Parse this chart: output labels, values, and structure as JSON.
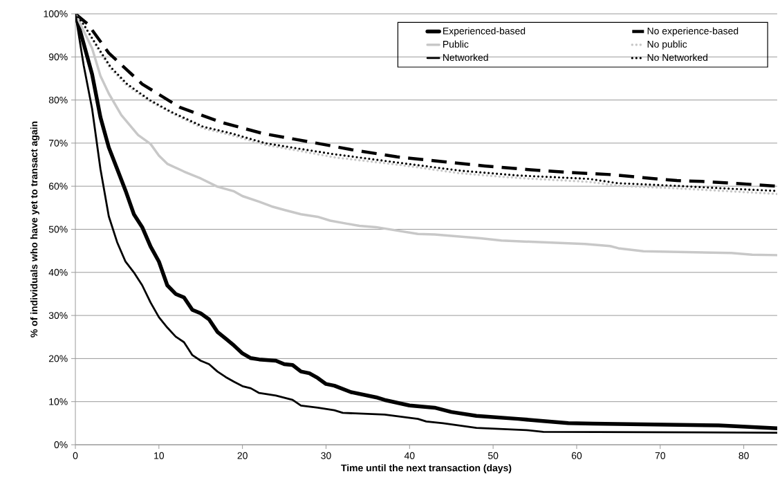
{
  "chart_data": {
    "type": "line",
    "xlabel": "Time until the next transaction (days)",
    "ylabel": "% of individuals who have yet to transact again",
    "xlim": [
      0,
      84
    ],
    "ylim": [
      0,
      100
    ],
    "xticks": [
      0,
      10,
      20,
      30,
      40,
      50,
      60,
      70,
      80
    ],
    "yticks": [
      {
        "value": 0,
        "label": "0%"
      },
      {
        "value": 10,
        "label": "10%"
      },
      {
        "value": 20,
        "label": "20%"
      },
      {
        "value": 30,
        "label": "30%"
      },
      {
        "value": 40,
        "label": "40%"
      },
      {
        "value": 50,
        "label": "50%"
      },
      {
        "value": 60,
        "label": "60%"
      },
      {
        "value": 70,
        "label": "70%"
      },
      {
        "value": 80,
        "label": "80%"
      },
      {
        "value": 90,
        "label": "90%"
      },
      {
        "value": 100,
        "label": "100%"
      }
    ],
    "grid": "y",
    "legend": "top right",
    "marker": "none",
    "series": [
      {
        "name": "Experienced-based",
        "color": "#000000",
        "line_style": "solid",
        "x": [
          0,
          1,
          2,
          3,
          4,
          5,
          6,
          7,
          8,
          9,
          10,
          11,
          12,
          13,
          14,
          15,
          16,
          17,
          18,
          19,
          20,
          21,
          22,
          24,
          25,
          26,
          27,
          28,
          29,
          30,
          31,
          33,
          36,
          37,
          40,
          43,
          45,
          48,
          53,
          56,
          59,
          62,
          77,
          84
        ],
        "values": [
          100,
          93,
          86,
          76,
          69,
          64,
          59,
          53.5,
          50.5,
          46,
          42.5,
          37,
          35,
          34.2,
          31.3,
          30.5,
          29.1,
          26.2,
          24.6,
          23,
          21.2,
          20.1,
          19.8,
          19.5,
          18.7,
          18.5,
          17,
          16.6,
          15.5,
          14.1,
          13.7,
          12.2,
          11,
          10.4,
          9.1,
          8.6,
          7.6,
          6.7,
          6,
          5.5,
          5,
          4.9,
          4.5,
          3.8
        ]
      },
      {
        "name": "No experience-based",
        "color": "#000000",
        "line_style": "dashed",
        "x": [
          0,
          1.5,
          4,
          8,
          12.5,
          17.5,
          22.5,
          28,
          33,
          38.5,
          44,
          49,
          54.5,
          59,
          64,
          69,
          72,
          75,
          79.5,
          84
        ],
        "values": [
          100,
          97.6,
          90.9,
          83.7,
          78.3,
          74.8,
          72.2,
          70.3,
          68.5,
          66.8,
          65.7,
          64.7,
          63.8,
          63.2,
          62.7,
          61.8,
          61.3,
          61.1,
          60.6,
          60
        ]
      },
      {
        "name": "Public",
        "color": "#c8c8c8",
        "line_style": "solid",
        "x": [
          0,
          2,
          3,
          4,
          5.5,
          7.5,
          9,
          10,
          11,
          13,
          15,
          17,
          19,
          20,
          22,
          23.5,
          25,
          27,
          29,
          30.5,
          32.5,
          34,
          36,
          41,
          43,
          48.5,
          51,
          54.5,
          61,
          64,
          65,
          68,
          78.5,
          81,
          84
        ],
        "values": [
          100,
          92,
          85.6,
          81.5,
          76.5,
          71.9,
          69.8,
          67.1,
          65.2,
          63.4,
          61.8,
          59.9,
          58.8,
          57.7,
          56.4,
          55.3,
          54.5,
          53.5,
          52.9,
          52,
          51.3,
          50.8,
          50.5,
          48.9,
          48.8,
          47.9,
          47.4,
          47.1,
          46.6,
          46.1,
          45.6,
          44.9,
          44.5,
          44.1,
          44
        ]
      },
      {
        "name": "No public",
        "color": "#c8c8c8",
        "line_style": "dotted",
        "x": [
          0,
          1,
          2.7,
          4.2,
          6.2,
          9,
          11.5,
          15.3,
          18.6,
          22.7,
          26.8,
          31,
          39,
          46,
          53,
          61.5,
          65,
          72,
          78.5,
          84
        ],
        "values": [
          100,
          97.5,
          91.8,
          87.3,
          83.3,
          79.6,
          77,
          73.4,
          71.9,
          69.6,
          68.2,
          66.7,
          64.9,
          63,
          61.9,
          61,
          60.1,
          59.5,
          58.8,
          58.2
        ]
      },
      {
        "name": "Networked",
        "color": "#000000",
        "line_style": "solid",
        "x": [
          0,
          1,
          2,
          3,
          4,
          5,
          6,
          7,
          8,
          9,
          10,
          11,
          12,
          13,
          14,
          15,
          16,
          17,
          18,
          19,
          20,
          21,
          22,
          24,
          26,
          27,
          29,
          31,
          32,
          37,
          41,
          42,
          44,
          48,
          54,
          56,
          84
        ],
        "values": [
          100,
          88,
          78,
          64,
          53,
          47,
          42.5,
          40,
          37,
          33,
          29.6,
          27.2,
          25.1,
          23.8,
          20.8,
          19.5,
          18.7,
          17,
          15.7,
          14.6,
          13.6,
          13.1,
          12,
          11.4,
          10.4,
          9.1,
          8.6,
          8,
          7.4,
          7,
          6,
          5.4,
          5,
          3.9,
          3.4,
          3,
          2.8
        ]
      },
      {
        "name": "No Networked",
        "color": "#000000",
        "line_style": "dotted",
        "x": [
          0,
          0.9,
          2.7,
          4.2,
          6.2,
          8.9,
          11.4,
          15.3,
          18.6,
          22.7,
          26.8,
          30.7,
          38.9,
          46.1,
          52.9,
          61.5,
          64.9,
          71.8,
          78.6,
          84
        ],
        "values": [
          100,
          97.8,
          92.2,
          87.7,
          83.7,
          80,
          77.3,
          73.8,
          72.3,
          70,
          68.7,
          67.5,
          65.4,
          63.6,
          62.5,
          61.7,
          60.7,
          60.1,
          59.4,
          58.9
        ]
      }
    ]
  }
}
